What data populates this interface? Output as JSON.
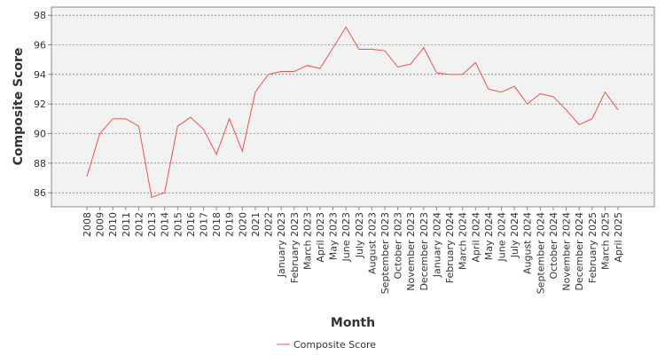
{
  "chart_data": {
    "type": "line",
    "x_label": "Month",
    "y_label": "Composite Score",
    "categories": [
      "2008",
      "2009",
      "2010",
      "2011",
      "2012",
      "2013",
      "2014",
      "2015",
      "2016",
      "2017",
      "2018",
      "2019",
      "2020",
      "2021",
      "2022",
      "January 2023",
      "February 2023",
      "March 2023",
      "April 2023",
      "May 2023",
      "June 2023",
      "July 2023",
      "August 2023",
      "September 2023",
      "October 2023",
      "November 2023",
      "December 2023",
      "January 2024",
      "February 2024",
      "March 2024",
      "April 2024",
      "May 2024",
      "June 2024",
      "July 2024",
      "August 2024",
      "September 2024",
      "October 2024",
      "November 2024",
      "December 2024",
      "February 2025",
      "March 2025",
      "April 2025"
    ],
    "series": [
      {
        "name": "Composite Score",
        "color": "#f05050",
        "values": [
          87.1,
          90.0,
          91.0,
          91.0,
          90.5,
          85.7,
          86.0,
          90.5,
          91.1,
          90.3,
          88.6,
          91.0,
          88.8,
          92.8,
          94.0,
          94.2,
          94.2,
          94.6,
          94.4,
          95.8,
          97.2,
          95.7,
          95.7,
          95.6,
          94.5,
          94.7,
          95.8,
          94.1,
          94.0,
          94.0,
          94.8,
          93.0,
          92.8,
          93.2,
          92.0,
          92.7,
          92.5,
          91.6,
          90.6,
          91.0,
          92.8,
          91.6
        ]
      }
    ],
    "ylim": [
      85.05,
      98.55
    ],
    "yticks": [
      86,
      88,
      90,
      92,
      94,
      96,
      98
    ],
    "grid": true
  }
}
